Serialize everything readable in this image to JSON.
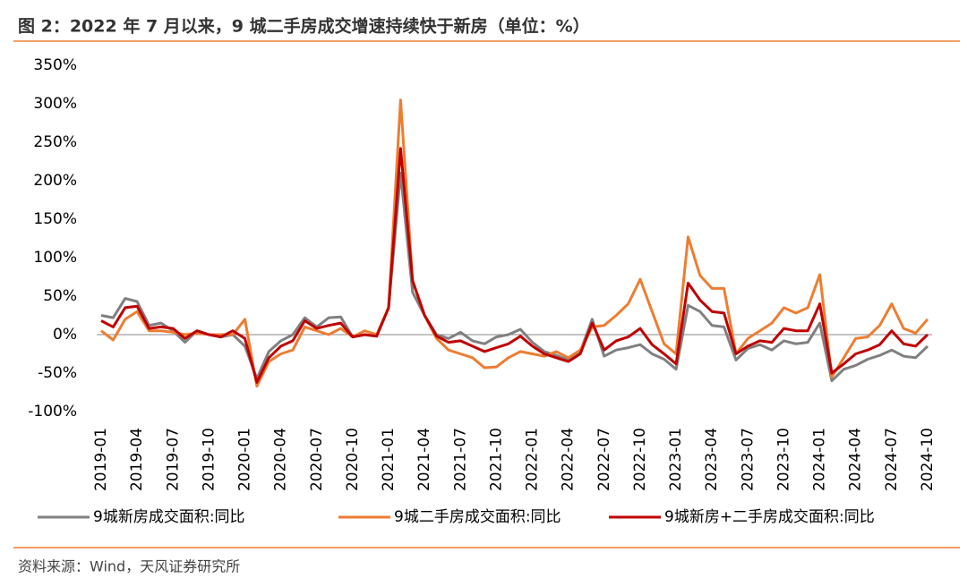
{
  "chart_data": {
    "type": "line",
    "title": "图 2：2022 年 7 月以来，9 城二手房成交增速持续快于新房（单位：%）",
    "source": "资料来源：Wind，天风证券研究所",
    "categories": [
      "2019-01",
      null,
      null,
      "2019-04",
      null,
      null,
      "2019-07",
      null,
      null,
      "2019-10",
      null,
      null,
      "2020-01",
      null,
      null,
      "2020-04",
      null,
      null,
      "2020-07",
      null,
      null,
      "2020-10",
      null,
      null,
      "2021-01",
      null,
      null,
      "2021-04",
      null,
      null,
      "2021-07",
      null,
      null,
      "2021-10",
      null,
      null,
      "2022-01",
      null,
      null,
      "2022-04",
      null,
      null,
      "2022-07",
      null,
      null,
      "2022-10",
      null,
      null,
      "2023-01",
      null,
      null,
      "2023-04",
      null,
      null,
      "2023-07",
      null,
      null,
      "2023-10",
      null,
      null,
      "2024-01",
      null,
      null,
      "2024-04",
      null,
      null,
      "2024-07",
      null,
      null,
      "2024-10"
    ],
    "series": [
      {
        "name": "9城新房成交面积:同比",
        "color": "#808080",
        "values": [
          25,
          22,
          47,
          43,
          12,
          15,
          5,
          -10,
          5,
          0,
          -3,
          0,
          -15,
          -57,
          -22,
          -8,
          0,
          22,
          10,
          22,
          23,
          -3,
          0,
          -2,
          35,
          210,
          55,
          25,
          0,
          -5,
          3,
          -8,
          -12,
          -3,
          0,
          7,
          -10,
          -22,
          -27,
          -33,
          -22,
          20,
          -28,
          -20,
          -17,
          -13,
          -25,
          -32,
          -45,
          38,
          30,
          12,
          10,
          -33,
          -18,
          -13,
          -20,
          -8,
          -12,
          -10,
          15,
          -60,
          -45,
          -40,
          -32,
          -27,
          -20,
          -28,
          -30,
          -15
        ]
      },
      {
        "name": "9城二手房成交面积:同比",
        "color": "#ed7d31",
        "values": [
          5,
          -7,
          20,
          30,
          5,
          5,
          3,
          0,
          2,
          0,
          0,
          0,
          20,
          -67,
          -35,
          -25,
          -20,
          10,
          5,
          0,
          8,
          -3,
          5,
          0,
          35,
          305,
          70,
          25,
          -5,
          -20,
          -25,
          -30,
          -43,
          -42,
          -30,
          -22,
          -25,
          -28,
          -22,
          -30,
          -20,
          10,
          12,
          25,
          40,
          72,
          30,
          -12,
          -25,
          127,
          77,
          60,
          60,
          -25,
          -5,
          5,
          15,
          35,
          28,
          35,
          78,
          -55,
          -30,
          -5,
          -3,
          12,
          40,
          8,
          2,
          20
        ]
      },
      {
        "name": "9城新房+二手房成交面积:同比",
        "color": "#c00000",
        "values": [
          18,
          10,
          35,
          37,
          8,
          10,
          8,
          -5,
          5,
          0,
          -3,
          5,
          -5,
          -62,
          -30,
          -15,
          -8,
          18,
          8,
          12,
          15,
          -3,
          0,
          -2,
          35,
          242,
          70,
          25,
          -2,
          -10,
          -8,
          -15,
          -22,
          -17,
          -12,
          -2,
          -15,
          -25,
          -30,
          -35,
          -25,
          15,
          -20,
          -8,
          -3,
          8,
          -13,
          -25,
          -38,
          67,
          45,
          30,
          28,
          -25,
          -15,
          -8,
          -10,
          8,
          5,
          5,
          40,
          -50,
          -38,
          -25,
          -20,
          -13,
          5,
          -12,
          -15,
          0
        ]
      }
    ],
    "ylim": [
      -100,
      350
    ],
    "yticks": [
      {
        "value": -100,
        "label": "-100%"
      },
      {
        "value": -50,
        "label": "-50%"
      },
      {
        "value": 0,
        "label": "0%"
      },
      {
        "value": 50,
        "label": "50%"
      },
      {
        "value": 100,
        "label": "100%"
      },
      {
        "value": 150,
        "label": "150%"
      },
      {
        "value": 200,
        "label": "200%"
      },
      {
        "value": 250,
        "label": "250%"
      },
      {
        "value": 300,
        "label": "300%"
      },
      {
        "value": 350,
        "label": "350%"
      }
    ]
  }
}
